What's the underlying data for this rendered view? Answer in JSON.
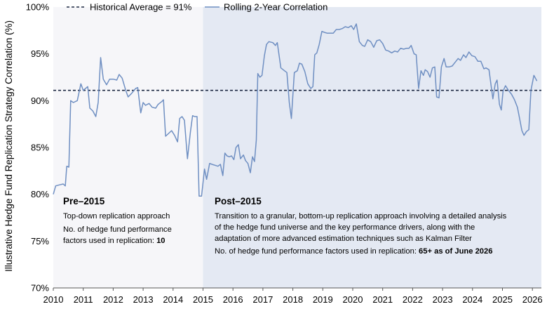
{
  "chart_data": {
    "type": "line",
    "ylabel": "Illustrative Hedge Fund Replication Strategy Correlation (%)",
    "xlabel": "",
    "ylim": [
      70,
      100
    ],
    "xlim": [
      2010,
      2026.3
    ],
    "grid": false,
    "legend_position": "top",
    "yticks": [
      "70%",
      "75%",
      "80%",
      "85%",
      "90%",
      "95%",
      "100%"
    ],
    "yticks_values": [
      70,
      75,
      80,
      85,
      90,
      95,
      100
    ],
    "xticks": [
      "2010",
      "2011",
      "2012",
      "2013",
      "2014",
      "2015",
      "2016",
      "2017",
      "2018",
      "2019",
      "2020",
      "2021",
      "2022",
      "2023",
      "2024",
      "2025",
      "2026"
    ],
    "xticks_values": [
      2010,
      2011,
      2012,
      2013,
      2014,
      2015,
      2016,
      2017,
      2018,
      2019,
      2020,
      2021,
      2022,
      2023,
      2024,
      2025,
      2026
    ],
    "reference_line": {
      "label": "Historical Average = 91%",
      "value": 91.1,
      "color": "#1f2a44"
    },
    "series": [
      {
        "name": "Rolling 2-Year Correlation",
        "color": "#6f8fc2",
        "points": [
          [
            2010.0,
            80.0
          ],
          [
            2010.08,
            80.9
          ],
          [
            2010.2,
            81.0
          ],
          [
            2010.33,
            81.1
          ],
          [
            2010.4,
            80.9
          ],
          [
            2010.45,
            83.0
          ],
          [
            2010.52,
            82.9
          ],
          [
            2010.58,
            90.0
          ],
          [
            2010.67,
            89.8
          ],
          [
            2010.8,
            90.0
          ],
          [
            2010.92,
            91.8
          ],
          [
            2011.0,
            91.1
          ],
          [
            2011.15,
            91.5
          ],
          [
            2011.22,
            89.2
          ],
          [
            2011.32,
            88.9
          ],
          [
            2011.42,
            88.3
          ],
          [
            2011.5,
            89.8
          ],
          [
            2011.58,
            94.6
          ],
          [
            2011.67,
            92.3
          ],
          [
            2011.78,
            91.7
          ],
          [
            2011.88,
            92.3
          ],
          [
            2012.0,
            92.3
          ],
          [
            2012.12,
            92.2
          ],
          [
            2012.2,
            92.8
          ],
          [
            2012.3,
            92.4
          ],
          [
            2012.42,
            91.1
          ],
          [
            2012.5,
            90.4
          ],
          [
            2012.62,
            90.8
          ],
          [
            2012.75,
            91.3
          ],
          [
            2012.82,
            91.4
          ],
          [
            2012.92,
            88.7
          ],
          [
            2013.0,
            89.8
          ],
          [
            2013.08,
            89.5
          ],
          [
            2013.2,
            89.7
          ],
          [
            2013.3,
            89.3
          ],
          [
            2013.42,
            89.2
          ],
          [
            2013.5,
            89.6
          ],
          [
            2013.62,
            89.9
          ],
          [
            2013.68,
            90.1
          ],
          [
            2013.75,
            86.2
          ],
          [
            2013.85,
            86.5
          ],
          [
            2013.95,
            86.8
          ],
          [
            2014.05,
            86.3
          ],
          [
            2014.15,
            85.6
          ],
          [
            2014.22,
            88.1
          ],
          [
            2014.3,
            88.3
          ],
          [
            2014.38,
            87.9
          ],
          [
            2014.48,
            83.8
          ],
          [
            2014.58,
            86.7
          ],
          [
            2014.65,
            88.4
          ],
          [
            2014.72,
            88.3
          ],
          [
            2014.8,
            88.3
          ],
          [
            2014.87,
            79.8
          ],
          [
            2014.95,
            79.8
          ],
          [
            2015.05,
            82.7
          ],
          [
            2015.12,
            81.6
          ],
          [
            2015.22,
            83.3
          ],
          [
            2015.3,
            83.2
          ],
          [
            2015.4,
            83.1
          ],
          [
            2015.5,
            83.0
          ],
          [
            2015.58,
            83.2
          ],
          [
            2015.66,
            82.0
          ],
          [
            2015.73,
            84.4
          ],
          [
            2015.8,
            84.1
          ],
          [
            2015.88,
            84.0
          ],
          [
            2015.95,
            84.1
          ],
          [
            2016.03,
            83.7
          ],
          [
            2016.1,
            85.0
          ],
          [
            2016.18,
            85.3
          ],
          [
            2016.25,
            83.8
          ],
          [
            2016.35,
            84.2
          ],
          [
            2016.42,
            83.6
          ],
          [
            2016.5,
            83.3
          ],
          [
            2016.58,
            82.3
          ],
          [
            2016.65,
            84.0
          ],
          [
            2016.72,
            83.5
          ],
          [
            2016.78,
            85.8
          ],
          [
            2016.83,
            92.9
          ],
          [
            2016.9,
            92.5
          ],
          [
            2016.97,
            92.7
          ],
          [
            2017.05,
            94.8
          ],
          [
            2017.12,
            96.0
          ],
          [
            2017.2,
            96.3
          ],
          [
            2017.33,
            96.2
          ],
          [
            2017.42,
            95.9
          ],
          [
            2017.48,
            96.2
          ],
          [
            2017.6,
            93.5
          ],
          [
            2017.72,
            93.2
          ],
          [
            2017.8,
            93.0
          ],
          [
            2017.88,
            89.8
          ],
          [
            2017.95,
            88.1
          ],
          [
            2018.05,
            93.0
          ],
          [
            2018.15,
            93.2
          ],
          [
            2018.22,
            94.0
          ],
          [
            2018.3,
            93.9
          ],
          [
            2018.4,
            93.1
          ],
          [
            2018.5,
            91.8
          ],
          [
            2018.6,
            91.3
          ],
          [
            2018.67,
            91.5
          ],
          [
            2018.73,
            94.9
          ],
          [
            2018.8,
            95.1
          ],
          [
            2018.88,
            96.0
          ],
          [
            2018.97,
            97.4
          ],
          [
            2019.05,
            97.3
          ],
          [
            2019.15,
            97.2
          ],
          [
            2019.25,
            97.2
          ],
          [
            2019.35,
            97.2
          ],
          [
            2019.45,
            97.6
          ],
          [
            2019.55,
            97.6
          ],
          [
            2019.65,
            97.7
          ],
          [
            2019.75,
            97.9
          ],
          [
            2019.85,
            97.8
          ],
          [
            2019.95,
            98.0
          ],
          [
            2020.03,
            97.6
          ],
          [
            2020.12,
            98.2
          ],
          [
            2020.22,
            96.3
          ],
          [
            2020.32,
            95.9
          ],
          [
            2020.4,
            95.8
          ],
          [
            2020.5,
            96.5
          ],
          [
            2020.6,
            96.3
          ],
          [
            2020.7,
            95.7
          ],
          [
            2020.8,
            96.4
          ],
          [
            2020.9,
            96.5
          ],
          [
            2021.0,
            96.1
          ],
          [
            2021.1,
            95.4
          ],
          [
            2021.2,
            95.3
          ],
          [
            2021.3,
            95.1
          ],
          [
            2021.4,
            95.3
          ],
          [
            2021.5,
            95.2
          ],
          [
            2021.6,
            95.6
          ],
          [
            2021.7,
            95.5
          ],
          [
            2021.8,
            95.6
          ],
          [
            2021.88,
            95.6
          ],
          [
            2021.95,
            95.9
          ],
          [
            2022.05,
            95.0
          ],
          [
            2022.12,
            94.9
          ],
          [
            2022.2,
            91.3
          ],
          [
            2022.28,
            93.2
          ],
          [
            2022.36,
            92.7
          ],
          [
            2022.42,
            93.3
          ],
          [
            2022.5,
            93.1
          ],
          [
            2022.58,
            92.5
          ],
          [
            2022.66,
            93.5
          ],
          [
            2022.74,
            93.6
          ],
          [
            2022.8,
            90.4
          ],
          [
            2022.88,
            90.3
          ],
          [
            2022.96,
            93.6
          ],
          [
            2023.05,
            94.5
          ],
          [
            2023.12,
            93.6
          ],
          [
            2023.22,
            93.6
          ],
          [
            2023.32,
            93.7
          ],
          [
            2023.42,
            94.1
          ],
          [
            2023.52,
            94.5
          ],
          [
            2023.6,
            94.3
          ],
          [
            2023.7,
            94.9
          ],
          [
            2023.78,
            94.6
          ],
          [
            2023.88,
            95.2
          ],
          [
            2023.98,
            94.8
          ],
          [
            2024.08,
            94.7
          ],
          [
            2024.18,
            94.2
          ],
          [
            2024.28,
            94.2
          ],
          [
            2024.38,
            93.4
          ],
          [
            2024.45,
            93.5
          ],
          [
            2024.55,
            93.3
          ],
          [
            2024.62,
            91.6
          ],
          [
            2024.68,
            90.2
          ],
          [
            2024.76,
            91.8
          ],
          [
            2024.82,
            92.2
          ],
          [
            2024.9,
            89.6
          ],
          [
            2024.96,
            89.0
          ],
          [
            2025.02,
            91.0
          ],
          [
            2025.1,
            91.6
          ],
          [
            2025.2,
            91.1
          ],
          [
            2025.3,
            90.7
          ],
          [
            2025.4,
            90.1
          ],
          [
            2025.5,
            89.3
          ],
          [
            2025.56,
            88.3
          ],
          [
            2025.65,
            86.8
          ],
          [
            2025.72,
            86.3
          ],
          [
            2025.8,
            86.7
          ],
          [
            2025.88,
            86.9
          ],
          [
            2025.95,
            91.1
          ],
          [
            2026.05,
            92.7
          ],
          [
            2026.15,
            92.1
          ]
        ]
      }
    ],
    "annotations": [
      {
        "heading": "Pre–2015",
        "lines": [
          "Top-down replication approach",
          "No. of hedge fund performance",
          "factors used in replication: "
        ],
        "emphasis": "10"
      },
      {
        "heading": "Post–2015",
        "lines": [
          "Transition to a granular, bottom-up replication approach involving a detailed analysis",
          "of the hedge fund universe and the key performance drivers, along with the",
          "adaptation of more advanced estimation techniques such as Kalman Filter",
          "No. of hedge fund performance factors used in replication: "
        ],
        "emphasis": "65+ as of June 2026"
      }
    ],
    "regions": [
      {
        "from": 2010,
        "to": 2015,
        "color": "#f6f6f9"
      },
      {
        "from": 2015,
        "to": 2026.3,
        "color": "#e4e9f3"
      }
    ]
  }
}
